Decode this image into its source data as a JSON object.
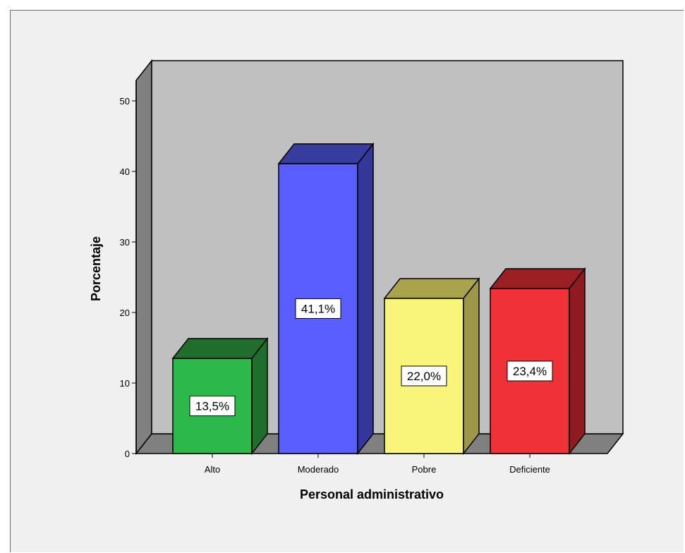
{
  "chart_data": {
    "type": "bar",
    "style": "3d",
    "categories": [
      "Alto",
      "Moderado",
      "Pobre",
      "Deficiente"
    ],
    "values": [
      13.5,
      41.1,
      22.0,
      23.4
    ],
    "data_labels": [
      "13,5%",
      "41,1%",
      "22,0%",
      "23,4%"
    ],
    "xlabel": "Personal administrativo",
    "ylabel": "Porcentaje",
    "ylim": [
      0,
      50
    ],
    "yticks": [
      0,
      10,
      20,
      30,
      40,
      50
    ],
    "ytick_labels": [
      "0",
      "10",
      "20",
      "30",
      "40",
      "50"
    ],
    "grid": false,
    "legend": "none",
    "colors": {
      "bars": [
        "#2db84a",
        "#5a5eff",
        "#f8f57a",
        "#ef3238"
      ],
      "bars_top": [
        "#1f6e2c",
        "#373c9f",
        "#a9a44c",
        "#9c1f24"
      ],
      "bars_side": [
        "#1f6e2c",
        "#33379a",
        "#9c9847",
        "#8e1b20"
      ],
      "wall": "#c0c0c0",
      "floor": "#808080",
      "background": "#f0f0f0"
    }
  }
}
